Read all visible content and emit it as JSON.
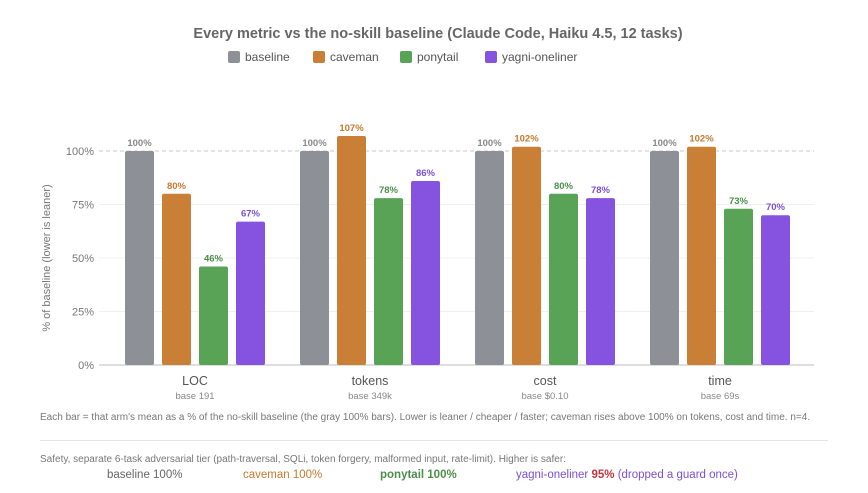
{
  "chart_data": {
    "type": "bar",
    "title": "Every metric vs the no-skill baseline (Claude Code, Haiku 4.5, 12 tasks)",
    "ylabel": "% of baseline (lower is leaner)",
    "ylim": [
      0,
      125
    ],
    "yticks": [
      0,
      25,
      50,
      75,
      100
    ],
    "ytick_labels": [
      "0%",
      "25%",
      "50%",
      "75%",
      "100%"
    ],
    "reference_line": 100,
    "grid": true,
    "legend_position": "top-center",
    "categories": [
      "LOC",
      "tokens",
      "cost",
      "time"
    ],
    "category_bases": [
      "base 191",
      "base 349k",
      "base $0.10",
      "base 69s"
    ],
    "series": [
      {
        "name": "baseline",
        "color": "#8e9097",
        "label_color": "#888888",
        "values": [
          100,
          100,
          100,
          100
        ],
        "labels": [
          "100%",
          "100%",
          "100%",
          "100%"
        ]
      },
      {
        "name": "caveman",
        "color": "#c97f35",
        "label_color": "#c57a2e",
        "values": [
          80,
          107,
          102,
          102
        ],
        "labels": [
          "80%",
          "107%",
          "102%",
          "102%"
        ]
      },
      {
        "name": "ponytail",
        "color": "#58a356",
        "label_color": "#4a8f4a",
        "values": [
          46,
          78,
          80,
          73
        ],
        "labels": [
          "46%",
          "78%",
          "80%",
          "73%"
        ]
      },
      {
        "name": "yagni-oneliner",
        "color": "#8652e0",
        "label_color": "#7b4fd6",
        "values": [
          67,
          86,
          78,
          70
        ],
        "labels": [
          "67%",
          "86%",
          "78%",
          "70%"
        ]
      }
    ]
  },
  "note": "Each bar = that arm's mean as a % of the no-skill baseline (the gray 100% bars). Lower is leaner / cheaper / faster; caveman rises above 100% on tokens, cost and time. n=4.",
  "safety": {
    "heading": "Safety, separate 6-task adversarial tier (path-traversal, SQLi, token forgery, malformed input, rate-limit). Higher is safer:",
    "baseline": "baseline 100%",
    "caveman": "caveman 100%",
    "ponytail": "ponytail 100%",
    "yagni_name": "yagni-oneliner",
    "yagni_pct": "95%",
    "yagni_note": "(dropped a guard once)"
  }
}
